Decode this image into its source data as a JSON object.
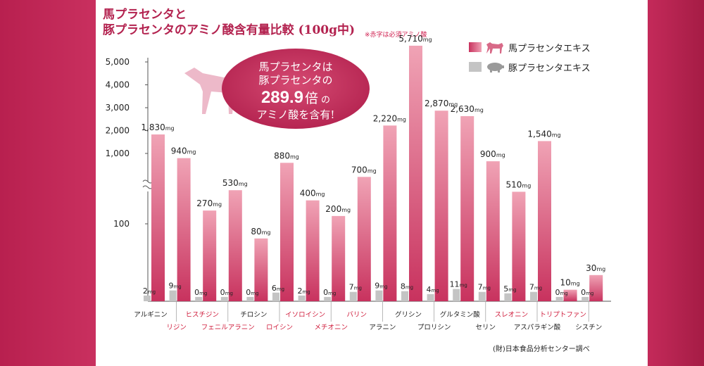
{
  "header": {
    "title_line1": "馬プラセンタと",
    "title_line2": "豚プラセンタのアミノ酸含有量比較 (100g中)",
    "note": "※赤字は必須アミノ酸"
  },
  "legend": [
    {
      "label": "馬プラセンタエキス",
      "color": "#c8325e",
      "icon": "horse-icon"
    },
    {
      "label": "豚プラセンタエキス",
      "color": "#bfbfbf",
      "icon": "pig-icon"
    }
  ],
  "callout": {
    "line1": "馬プラセンタは",
    "line2": "豚プラセンタの",
    "value": "289.9",
    "unit": "倍",
    "particle": "の",
    "line4": "アミノ酸を含有!"
  },
  "source": "(財)日本食品分析センター調べ",
  "colors": {
    "horse": "#c8325e",
    "pig": "#c4c4c4",
    "essential": "#d0203f",
    "frame": "#b8204f"
  },
  "chart_data": {
    "type": "bar",
    "categories": [
      "アルギニン",
      "リジン",
      "ヒスチジン",
      "フェニルアラニン",
      "チロシン",
      "ロイシン",
      "イソロイシン",
      "メチオニン",
      "バリン",
      "アラニン",
      "グリシン",
      "プロリシン",
      "グルタミン酸",
      "セリン",
      "スレオニン",
      "アスパラギン酸",
      "トリプトファン",
      "シスチン"
    ],
    "essential": [
      false,
      true,
      true,
      true,
      false,
      true,
      true,
      true,
      true,
      false,
      false,
      false,
      false,
      false,
      true,
      false,
      true,
      false
    ],
    "series": [
      {
        "name": "馬プラセンタエキス",
        "values": [
          1830,
          940,
          270,
          530,
          80,
          880,
          400,
          200,
          700,
          2220,
          5710,
          2870,
          2630,
          900,
          510,
          1540,
          10,
          30
        ],
        "labels": [
          "1,830",
          "940",
          "270",
          "530",
          "80",
          "880",
          "400",
          "200",
          "700",
          "2,220",
          "5,710",
          "2,870",
          "2,630",
          "900",
          "510",
          "1,540",
          "10",
          "30"
        ]
      },
      {
        "name": "豚プラセンタエキス",
        "values": [
          2,
          9,
          0,
          0,
          0,
          6,
          2,
          0,
          7,
          9,
          8,
          4,
          11,
          7,
          5,
          7,
          0,
          0
        ],
        "labels": [
          "2",
          "9",
          "0",
          "0",
          "0",
          "6",
          "2",
          "0",
          "7",
          "9",
          "8",
          "4",
          "11",
          "7",
          "5",
          "7",
          "0",
          "0"
        ]
      }
    ],
    "value_unit": "mg",
    "y_ticks": [
      "5,000",
      "4,000",
      "3,000",
      "2,000",
      "1,000",
      "100"
    ],
    "y_scale": "broken (linear 0–100, compressed above 1,000)"
  }
}
